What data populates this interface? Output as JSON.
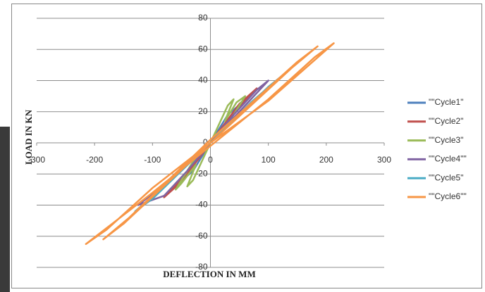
{
  "chart_data": {
    "type": "scatter",
    "lines": true,
    "x_label": "DEFLECTION IN MM",
    "y_label": "LOAD IN KN",
    "xlim": [
      -300,
      300
    ],
    "xticks": [
      -300,
      -200,
      -100,
      0,
      100,
      200,
      300
    ],
    "ylim": [
      -80,
      80
    ],
    "yticks": [
      -80,
      -60,
      -40,
      -20,
      0,
      20,
      40,
      60,
      80
    ],
    "grid": true,
    "legend": "right",
    "series": [
      {
        "name": "\"\"Cycle1\"",
        "color": "#4f81bd",
        "x": [
          0,
          20,
          40,
          55,
          30,
          0,
          -20,
          -40,
          -55,
          -30,
          0
        ],
        "y": [
          0,
          10,
          19,
          26,
          18,
          0,
          -10,
          -19,
          -26,
          -18,
          0
        ]
      },
      {
        "name": "\"\"Cycle2\"",
        "color": "#c0504d",
        "x": [
          0,
          30,
          60,
          80,
          50,
          0,
          -30,
          -60,
          -80,
          -50,
          0
        ],
        "y": [
          0,
          14,
          27,
          35,
          25,
          0,
          -14,
          -27,
          -35,
          -25,
          0
        ]
      },
      {
        "name": "\"\"Cycle3\"",
        "color": "#9bbb59",
        "x": [
          0,
          15,
          30,
          40,
          25,
          45,
          60,
          30,
          0,
          -15,
          -30,
          -40,
          -25,
          -50,
          -60,
          -30,
          0
        ],
        "y": [
          0,
          12,
          24,
          28,
          14,
          26,
          30,
          12,
          0,
          -12,
          -24,
          -28,
          -14,
          -26,
          -30,
          -12,
          0
        ]
      },
      {
        "name": "\"\"Cycle4\"\"",
        "color": "#8064a2",
        "x": [
          0,
          40,
          80,
          100,
          60,
          0,
          -40,
          -80,
          -110,
          -125,
          -70,
          0
        ],
        "y": [
          0,
          18,
          34,
          40,
          24,
          0,
          -18,
          -34,
          -38,
          -40,
          -24,
          0
        ]
      },
      {
        "name": "\"\"Cycle5\"",
        "color": "#4bacc6",
        "x": [
          0,
          50,
          100,
          120,
          70,
          0,
          -50,
          -100,
          -130,
          -80,
          0
        ],
        "y": [
          0,
          18,
          36,
          42,
          26,
          0,
          -18,
          -36,
          -44,
          -28,
          0
        ]
      },
      {
        "name": "\"\"Cycle6\"\"",
        "color": "#f79646",
        "x": [
          0,
          100,
          213,
          180,
          100,
          0,
          -100,
          -215,
          -180,
          -100,
          0,
          140,
          185,
          150,
          0,
          -140,
          -185,
          -150,
          0
        ],
        "y": [
          0,
          27,
          64,
          55,
          28,
          -2,
          -32,
          -65,
          -56,
          -29,
          0,
          48,
          62,
          52,
          2,
          -48,
          -62,
          -52,
          0
        ]
      }
    ]
  }
}
